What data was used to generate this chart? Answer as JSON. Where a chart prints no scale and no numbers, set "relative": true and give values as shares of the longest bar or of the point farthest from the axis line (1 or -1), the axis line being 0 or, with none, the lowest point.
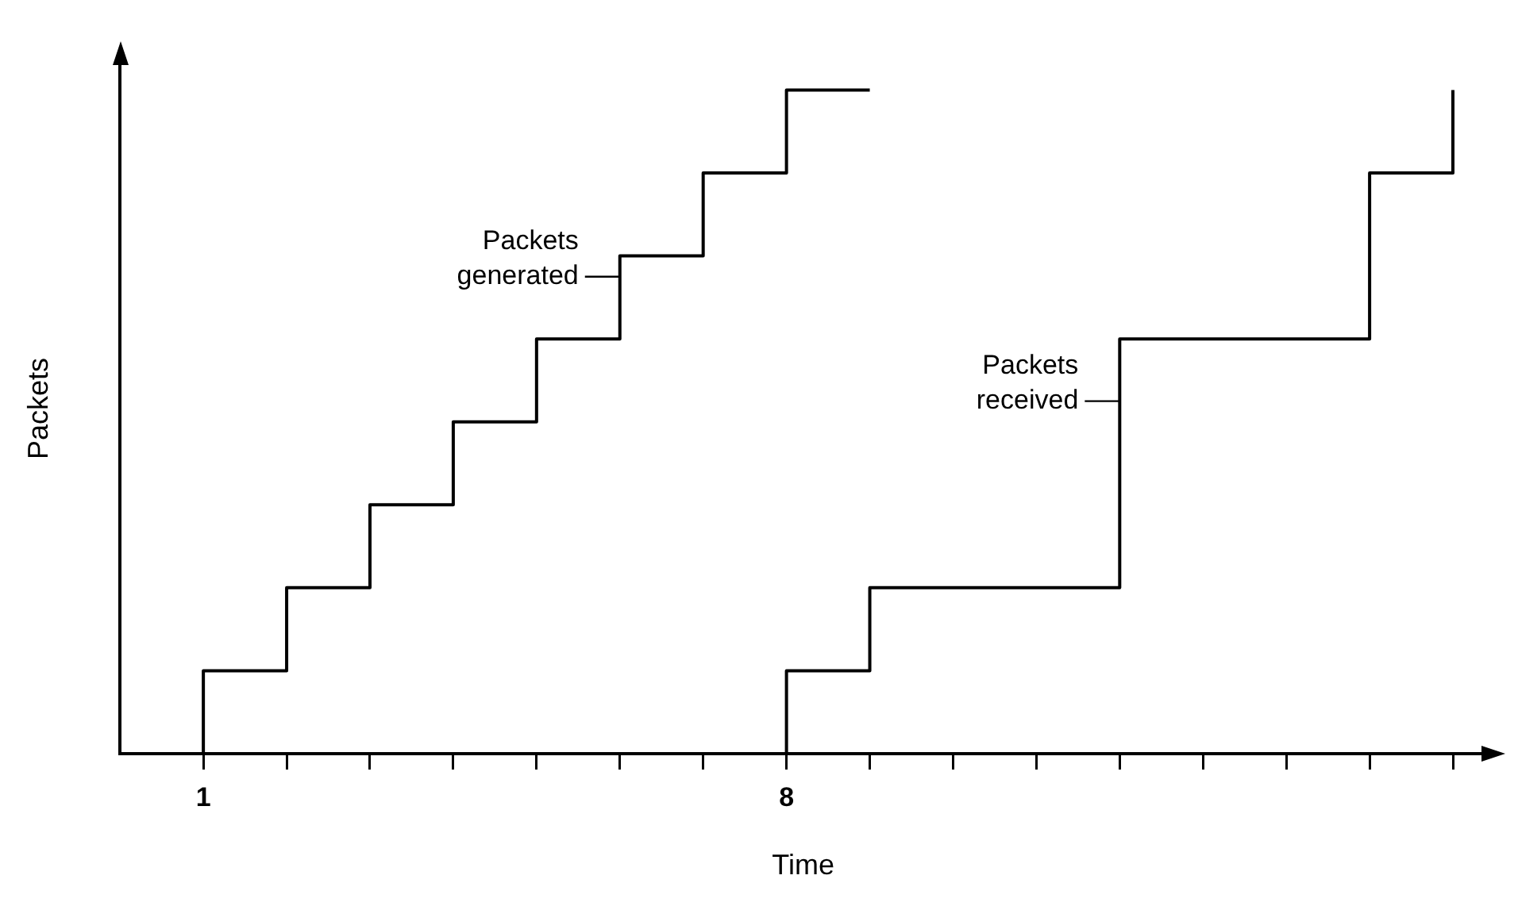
{
  "chart_data": {
    "type": "step",
    "relative": true,
    "xlabel": "Time",
    "ylabel": "Packets",
    "xlim": [
      0,
      16.4
    ],
    "xticks": [
      1,
      {
        "value": 2,
        "label": null
      },
      {
        "value": 3,
        "label": null
      },
      {
        "value": 4,
        "label": null
      },
      {
        "value": 5,
        "label": null
      },
      {
        "value": 6,
        "label": null
      },
      {
        "value": 7,
        "label": null
      },
      8,
      {
        "value": 9,
        "label": null
      },
      {
        "value": 10,
        "label": null
      },
      {
        "value": 11,
        "label": null
      },
      {
        "value": 12,
        "label": null
      },
      {
        "value": 13,
        "label": null
      },
      {
        "value": 14,
        "label": null
      },
      {
        "value": 15,
        "label": null
      },
      {
        "value": 16,
        "label": null
      }
    ],
    "series": [
      {
        "color": "#000000",
        "x": [
          1,
          1,
          2,
          3,
          4,
          5,
          6,
          7,
          8,
          9
        ],
        "values": [
          0,
          0.125,
          0.25,
          0.375,
          0.5,
          0.625,
          0.75,
          0.875,
          1,
          1
        ]
      },
      {
        "color": "#000000",
        "x": [
          8,
          8,
          9,
          12,
          15,
          16
        ],
        "values": [
          0,
          0.125,
          0.25,
          0.625,
          0.875,
          1
        ]
      }
    ],
    "annotations": [
      "Packets\ngenerated",
      "Packets\nreceived"
    ],
    "grid": false,
    "legend": false,
    "marker": "none",
    "line_style": "solid"
  }
}
